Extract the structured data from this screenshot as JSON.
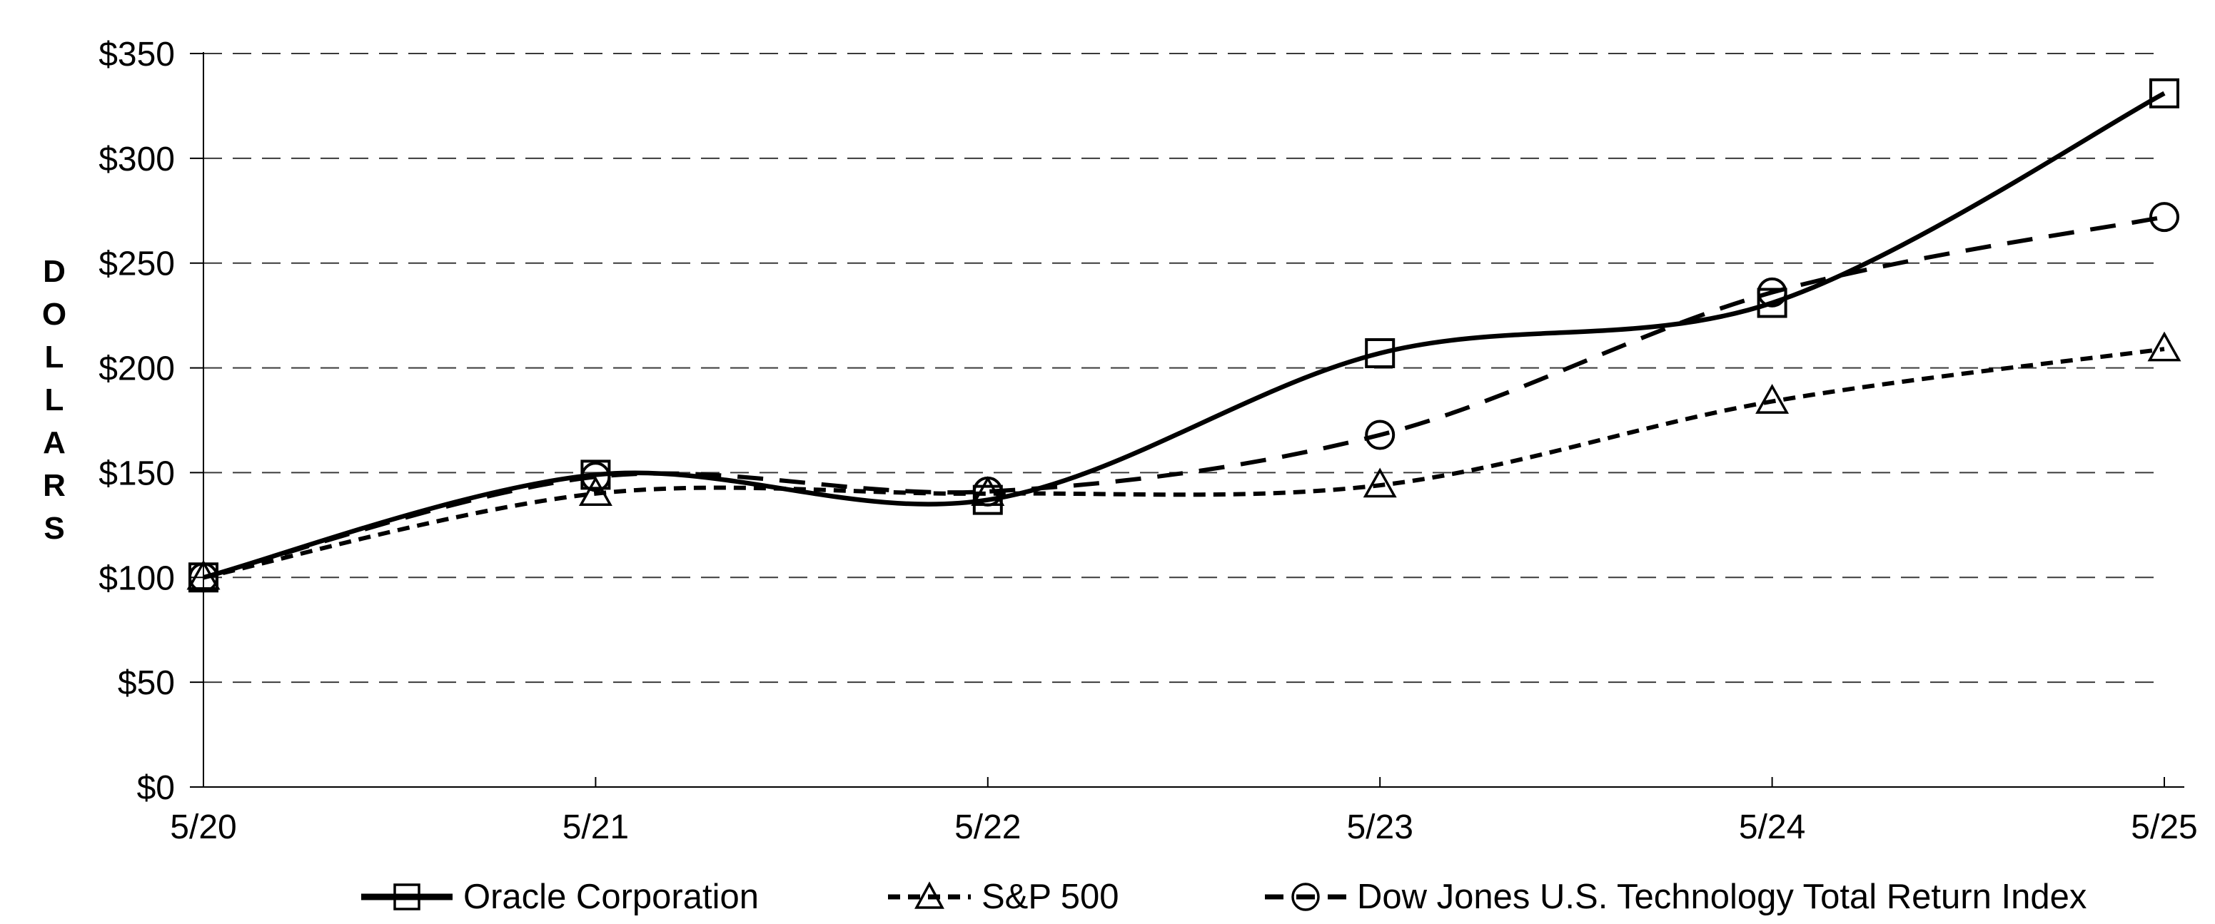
{
  "chart_data": {
    "type": "line",
    "title": "",
    "xlabel": "",
    "ylabel": "DOLLARS",
    "categories": [
      "5/20",
      "5/21",
      "5/22",
      "5/23",
      "5/24",
      "5/25"
    ],
    "y_ticks": [
      "$0",
      "$50",
      "$100",
      "$150",
      "$200",
      "$250",
      "$300",
      "$350"
    ],
    "ylim": [
      0,
      350
    ],
    "grid": "horizontal dashed gridlines at $50 intervals",
    "legend_position": "bottom",
    "line_smoothing": "smoothed curves",
    "series": [
      {
        "name": "Oracle Corporation",
        "marker": "square",
        "line_style": "solid",
        "values": [
          100,
          149,
          137,
          207,
          231,
          331
        ]
      },
      {
        "name": "S&P 500",
        "marker": "triangle",
        "line_style": "dashed-short",
        "values": [
          100,
          140,
          140,
          144,
          184,
          209
        ]
      },
      {
        "name": "Dow Jones U.S. Technology Total Return Index",
        "marker": "circle",
        "line_style": "dashed-long",
        "values": [
          100,
          148,
          141,
          168,
          236,
          272
        ]
      }
    ],
    "colors": {
      "foreground": "#000000",
      "background": "#ffffff",
      "gridline": "#3a3a3a"
    }
  }
}
